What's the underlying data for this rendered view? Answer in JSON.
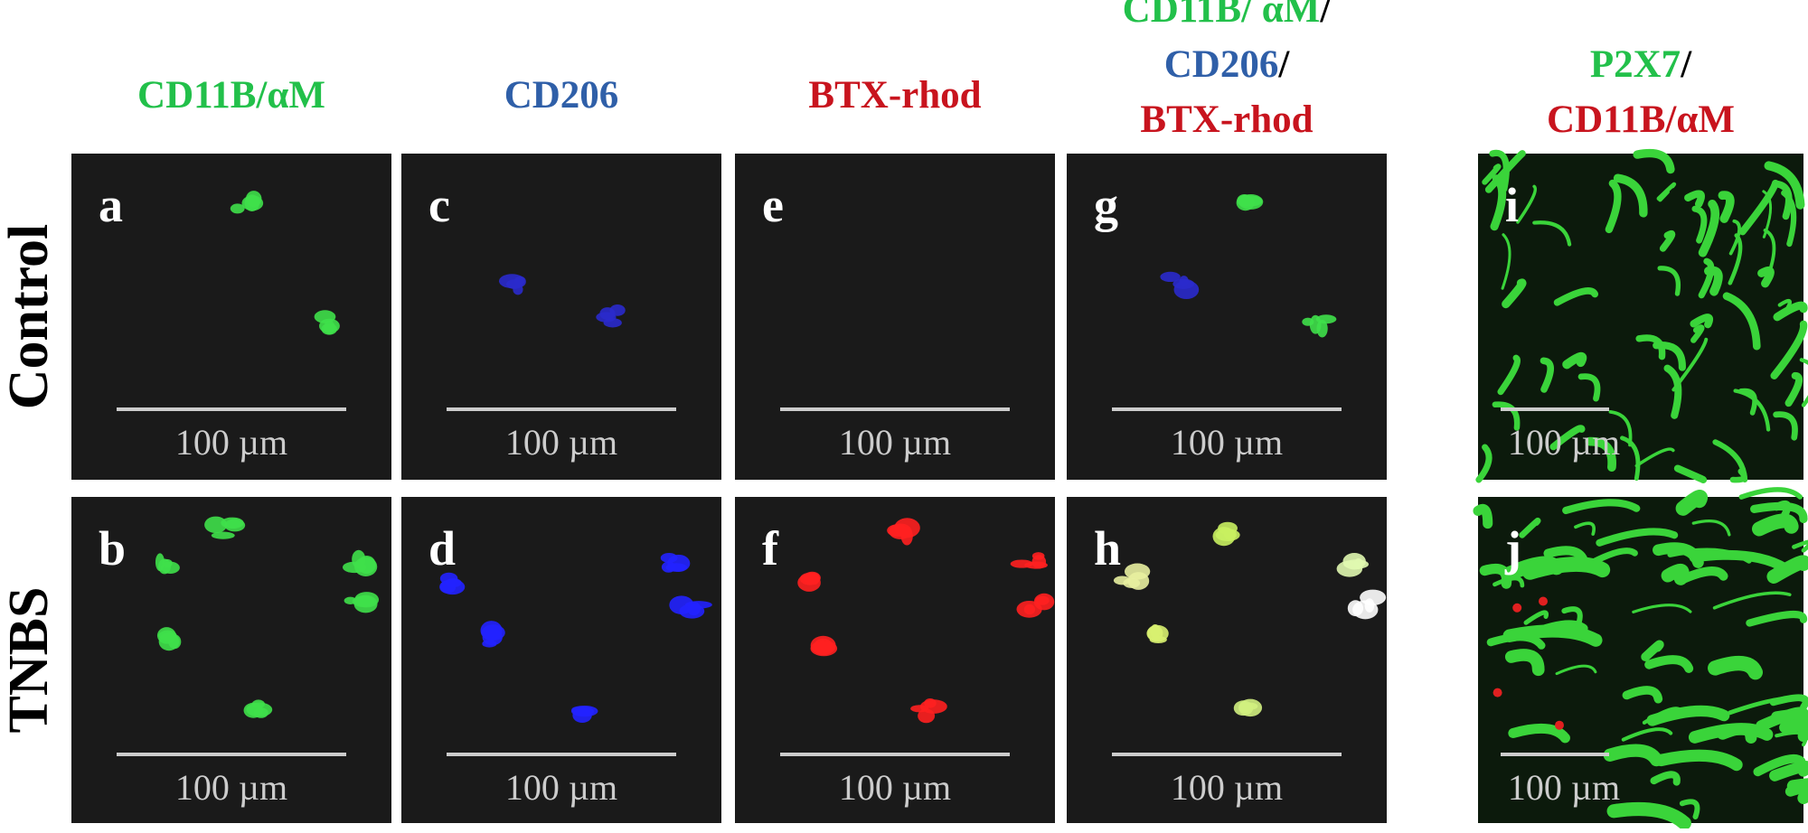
{
  "columns": [
    {
      "header_lines": [
        [
          {
            "text": "CD11B/αM",
            "color": "#22c04a"
          }
        ]
      ]
    },
    {
      "header_lines": [
        [
          {
            "text": "CD206",
            "color": "#2f5fa8"
          }
        ]
      ]
    },
    {
      "header_lines": [
        [
          {
            "text": "BTX-rhod",
            "color": "#c8141e"
          }
        ]
      ]
    },
    {
      "header_lines": [
        [
          {
            "text": "CD11B/ αM",
            "color": "#22c04a"
          },
          {
            "text": "/",
            "color": "#000000"
          }
        ],
        [
          {
            "text": "CD206",
            "color": "#2f5fa8"
          },
          {
            "text": "/",
            "color": "#000000"
          }
        ],
        [
          {
            "text": "BTX-rhod",
            "color": "#c8141e"
          }
        ]
      ]
    },
    {
      "header_lines": [
        [
          {
            "text": "P2X7",
            "color": "#22c04a"
          },
          {
            "text": "/",
            "color": "#000000"
          }
        ],
        [
          {
            "text": "CD11B/αM",
            "color": "#c8141e"
          }
        ]
      ]
    }
  ],
  "rows": [
    "Control",
    "TNBS"
  ],
  "panels": [
    [
      {
        "letter": "a",
        "scale_label": "100 µm"
      },
      {
        "letter": "c",
        "scale_label": "100 µm"
      },
      {
        "letter": "e",
        "scale_label": "100 µm"
      },
      {
        "letter": "g",
        "scale_label": "100 µm"
      },
      {
        "letter": "i",
        "scale_label": "100 µm"
      }
    ],
    [
      {
        "letter": "b",
        "scale_label": "100 µm"
      },
      {
        "letter": "d",
        "scale_label": "100 µm"
      },
      {
        "letter": "f",
        "scale_label": "100 µm"
      },
      {
        "letter": "h",
        "scale_label": "100 µm"
      },
      {
        "letter": "j",
        "scale_label": "100 µm"
      }
    ]
  ]
}
